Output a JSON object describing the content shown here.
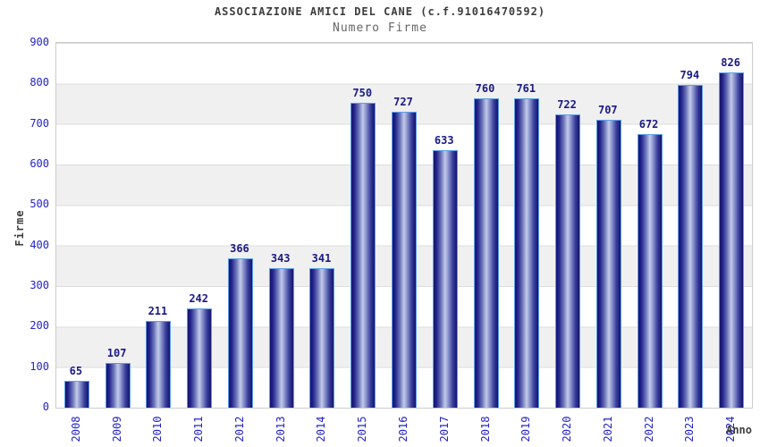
{
  "header": {
    "title": "ASSOCIAZIONE AMICI DEL CANE (c.f.91016470592)",
    "subtitle": "Numero Firme"
  },
  "chart_data": {
    "type": "bar",
    "title": "ASSOCIAZIONE AMICI DEL CANE (c.f.91016470592)",
    "subtitle": "Numero Firme",
    "xlabel": "Anno",
    "ylabel": "Firme",
    "categories": [
      "2008",
      "2009",
      "2010",
      "2011",
      "2012",
      "2013",
      "2014",
      "2015",
      "2016",
      "2017",
      "2018",
      "2019",
      "2020",
      "2021",
      "2022",
      "2023",
      "2024"
    ],
    "values": [
      65,
      107,
      211,
      242,
      366,
      343,
      341,
      750,
      727,
      633,
      760,
      761,
      722,
      707,
      672,
      794,
      826
    ],
    "ylim": [
      0,
      900
    ],
    "ytick_step": 100,
    "legend": "none",
    "grid": "horizontal-bands-alternating",
    "colors": {
      "bar_dark": "#14146e",
      "bar_highlight": "#c2c9ea",
      "bar_border": "#5b9ee8",
      "value_label": "#1a1a85",
      "axis_tick_label": "#2323cc",
      "axis_title": "#3d3d3d",
      "band_gray": "#f0f0f0",
      "band_white": "#ffffff",
      "plot_border": "#cccccc"
    }
  }
}
